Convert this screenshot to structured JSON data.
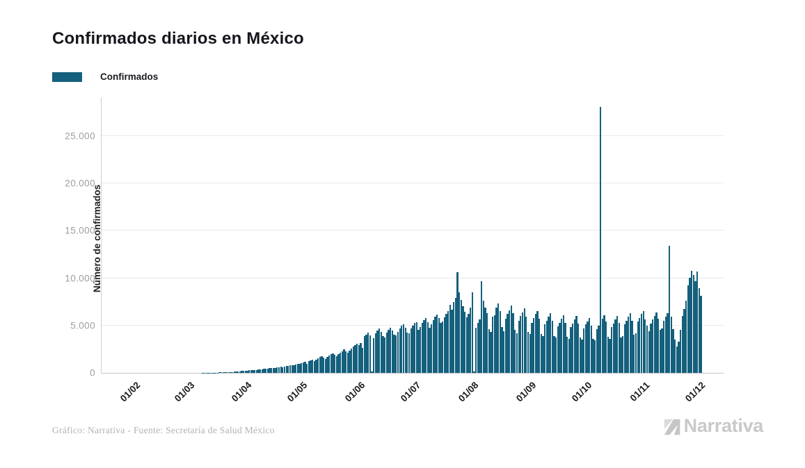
{
  "header": {
    "title": "Confirmados diarios en México"
  },
  "legend": {
    "items": [
      {
        "label": "Confirmados",
        "color": "#15607d"
      }
    ]
  },
  "footer": {
    "credit": "Gráfico: Narrativa - Fuente: Secretaría de Salud México",
    "brand": "Narrativa"
  },
  "colors": {
    "accent": "#15607d",
    "grid": "#e9e9e9",
    "axis": "#c4c4c4",
    "tick_text": "#9e9e9e",
    "brand_gray": "#c9c9c9"
  },
  "chart_data": {
    "type": "bar",
    "title": "Confirmados diarios en México",
    "xlabel": "",
    "ylabel": "Número de confirmados",
    "series_name": "Confirmados",
    "bar_color": "#15607d",
    "grid": "horizontal",
    "legend_position": "top-left",
    "frequency": "daily",
    "start_label": "01/02",
    "end_label": "01/12",
    "n_days": 305,
    "y_max_display": 29100,
    "y_ticks": [
      {
        "value": 0,
        "label": "0"
      },
      {
        "value": 5000,
        "label": "5.000"
      },
      {
        "value": 10000,
        "label": "10.000"
      },
      {
        "value": 15000,
        "label": "15.000"
      },
      {
        "value": 20000,
        "label": "20.000"
      },
      {
        "value": 25000,
        "label": "25.000"
      }
    ],
    "x_ticks": [
      {
        "label": "01/02",
        "day": 0
      },
      {
        "label": "01/03",
        "day": 29
      },
      {
        "label": "01/04",
        "day": 60
      },
      {
        "label": "01/05",
        "day": 90
      },
      {
        "label": "01/06",
        "day": 121
      },
      {
        "label": "01/07",
        "day": 151
      },
      {
        "label": "01/08",
        "day": 182
      },
      {
        "label": "01/09",
        "day": 213
      },
      {
        "label": "01/10",
        "day": 243
      },
      {
        "label": "01/11",
        "day": 274
      },
      {
        "label": "01/12",
        "day": 304
      }
    ],
    "notable_points": [
      {
        "label": "01/10 spike",
        "value": 28100
      },
      {
        "label": "mid-November spike",
        "value": 13400
      },
      {
        "label": "late-July peak",
        "value": 10600
      }
    ],
    "values": [
      0,
      0,
      0,
      0,
      0,
      0,
      0,
      0,
      0,
      0,
      0,
      0,
      0,
      0,
      0,
      0,
      0,
      0,
      0,
      0,
      0,
      0,
      0,
      0,
      0,
      0,
      0,
      1,
      1,
      1,
      2,
      2,
      3,
      4,
      5,
      5,
      6,
      8,
      10,
      12,
      14,
      16,
      20,
      25,
      30,
      38,
      45,
      50,
      60,
      70,
      80,
      95,
      110,
      125,
      140,
      155,
      170,
      190,
      210,
      230,
      250,
      270,
      290,
      310,
      330,
      300,
      340,
      370,
      400,
      430,
      410,
      450,
      480,
      510,
      490,
      530,
      570,
      610,
      650,
      620,
      660,
      710,
      760,
      810,
      780,
      830,
      880,
      930,
      980,
      1030,
      1120,
      1170,
      990,
      1230,
      1330,
      1430,
      1280,
      1390,
      1530,
      1660,
      1760,
      1590,
      1490,
      1690,
      1860,
      1960,
      2060,
      1910,
      1790,
      2010,
      2160,
      2310,
      2460,
      2260,
      2110,
      2360,
      2560,
      2760,
      2960,
      3110,
      2910,
      3160,
      2610,
      3860,
      4060,
      4260,
      3960,
      120,
      3660,
      4160,
      4460,
      4660,
      4360,
      3860,
      3760,
      4260,
      4560,
      4760,
      4460,
      4060,
      3960,
      4360,
      4660,
      4960,
      5160,
      4760,
      4260,
      4160,
      4660,
      4960,
      5260,
      5360,
      4560,
      4860,
      5260,
      5560,
      5760,
      5360,
      4760,
      5160,
      5560,
      5960,
      6160,
      5760,
      5260,
      5460,
      5860,
      6260,
      6560,
      7200,
      6660,
      7510,
      7920,
      10600,
      8500,
      7700,
      7010,
      6460,
      5860,
      6260,
      6860,
      8510,
      120,
      4760,
      5310,
      5610,
      9700,
      7610,
      6910,
      6310,
      4610,
      4310,
      5910,
      6110,
      6910,
      7310,
      6510,
      4810,
      4410,
      5710,
      6210,
      6610,
      7110,
      6310,
      4510,
      4210,
      5510,
      6010,
      6410,
      6810,
      5910,
      4310,
      4110,
      5310,
      5810,
      6210,
      6510,
      5710,
      4110,
      3910,
      5110,
      5510,
      5910,
      6310,
      5510,
      3910,
      3710,
      4910,
      5310,
      5710,
      6110,
      5310,
      3810,
      3610,
      4810,
      5210,
      5610,
      6010,
      5210,
      3710,
      3510,
      4710,
      5110,
      5410,
      5810,
      5010,
      3610,
      3410,
      4610,
      5010,
      28100,
      5710,
      6110,
      5410,
      3810,
      3610,
      4810,
      5210,
      5610,
      6010,
      5310,
      3710,
      3910,
      5110,
      5510,
      5910,
      6310,
      5510,
      4010,
      4210,
      5410,
      5810,
      6210,
      6510,
      5610,
      5010,
      4410,
      5210,
      5610,
      6010,
      6410,
      5710,
      4510,
      4710,
      5510,
      5910,
      6310,
      13400,
      5910,
      4610,
      3510,
      2810,
      3310,
      4510,
      6010,
      6710,
      7610,
      9210,
      10010,
      10810,
      10310,
      9710,
      10710,
      8910,
      8110
    ]
  }
}
